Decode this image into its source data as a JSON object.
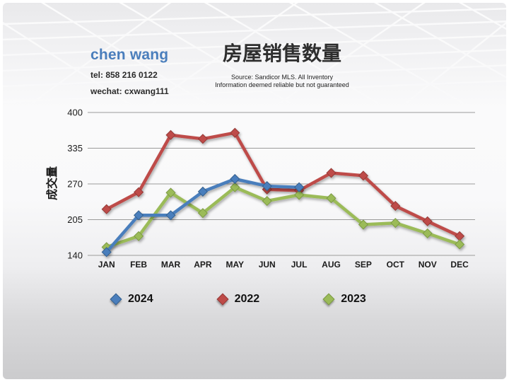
{
  "slide": {
    "agent": {
      "name": "chen wang",
      "tel": "tel: 858 216 0122",
      "wechat": "wechat: cxwang111",
      "name_color": "#4a7ebc"
    },
    "title": "房屋销售数量",
    "source_line1": "Source: Sandicor MLS. All Inventory",
    "source_line2": "Information deemed reliable but not guaranteed"
  },
  "chart_data": {
    "type": "line",
    "title": "房屋销售数量",
    "ylabel": "成交量",
    "xlabel": "",
    "categories": [
      "JAN",
      "FEB",
      "MAR",
      "APR",
      "MAY",
      "JUN",
      "JUL",
      "AUG",
      "SEP",
      "OCT",
      "NOV",
      "DEC"
    ],
    "y_ticks": [
      400,
      335,
      270,
      205,
      140
    ],
    "ylim": [
      140,
      400
    ],
    "grid": true,
    "legend_position": "bottom",
    "marker": "diamond",
    "series": [
      {
        "name": "2024",
        "color": "#4a7ebc",
        "marker_stroke": "#35618f",
        "values": [
          146,
          213,
          213,
          256,
          279,
          266,
          264
        ]
      },
      {
        "name": "2022",
        "color": "#be4b48",
        "marker_stroke": "#953b38",
        "values": [
          224,
          255,
          359,
          352,
          363,
          260,
          258,
          290,
          285,
          230,
          202,
          175
        ]
      },
      {
        "name": "2023",
        "color": "#9bbb59",
        "marker_stroke": "#7c9a45",
        "values": [
          155,
          175,
          254,
          217,
          264,
          239,
          250,
          244,
          196,
          199,
          180,
          160
        ]
      }
    ]
  }
}
